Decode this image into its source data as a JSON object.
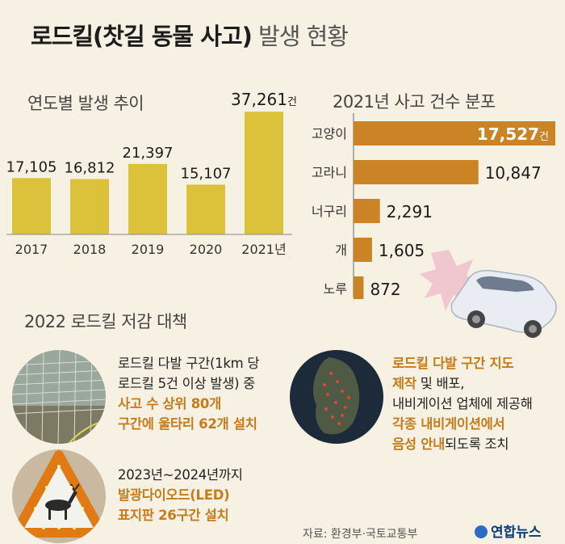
{
  "title": {
    "main": "로드킬(찻길 동물 사고)",
    "sub": "발생 현황"
  },
  "left_section_title": "연도별 발생 추이",
  "right_section_title": "2021년 사고 건수 분포",
  "colors": {
    "bar_yellow": "#dcc23a",
    "bar_orange": "#cb8425",
    "accent_orange": "#c67c1a",
    "background": "#f6f1e3"
  },
  "chart_data": [
    {
      "type": "bar",
      "title": "연도별 발생 추이",
      "categories": [
        "2017",
        "2018",
        "2019",
        "2020",
        "2021년"
      ],
      "values": [
        17105,
        16812,
        21397,
        15107,
        37261
      ],
      "value_labels": [
        "17,105",
        "16,812",
        "21,397",
        "15,107",
        "37,261"
      ],
      "last_value_unit": "건",
      "ylim": [
        0,
        40000
      ],
      "grid": false
    },
    {
      "type": "bar",
      "orientation": "horizontal",
      "title": "2021년 사고 건수 분포",
      "categories": [
        "고양이",
        "고라니",
        "너구리",
        "개",
        "노루"
      ],
      "values": [
        17527,
        10847,
        2291,
        1605,
        872
      ],
      "value_labels": [
        "17,527",
        "10,847",
        "2,291",
        "1,605",
        "872"
      ],
      "first_value_unit": "건",
      "xlim": [
        0,
        17527
      ],
      "grid": false
    }
  ],
  "measures": {
    "title": "2022 로드킬 저감 대책",
    "item1": {
      "line1": "로드킬 다발 구간(1km 당",
      "line2": "로드킬 5건 이상 발생) 중",
      "highlight1": "사고 수 상위 80개",
      "highlight2": "구간에 울타리 62개 설치"
    },
    "item2": {
      "line1": "2023년~2024년까지",
      "highlight1": "발광다이오드(LED)",
      "highlight2": "표지판 26구간 설치"
    },
    "item3": {
      "highlight1": "로드킬 다발 구간 지도",
      "highlight2": "제작",
      "text2": " 및 배포,",
      "line3": "내비게이션 업체에 제공해",
      "highlight3": "각종 내비게이션에서",
      "highlight4": "음성 안내",
      "text4": "되도록 조치"
    }
  },
  "source": "자료: 환경부·국토교통부",
  "logo": "연합뉴스"
}
